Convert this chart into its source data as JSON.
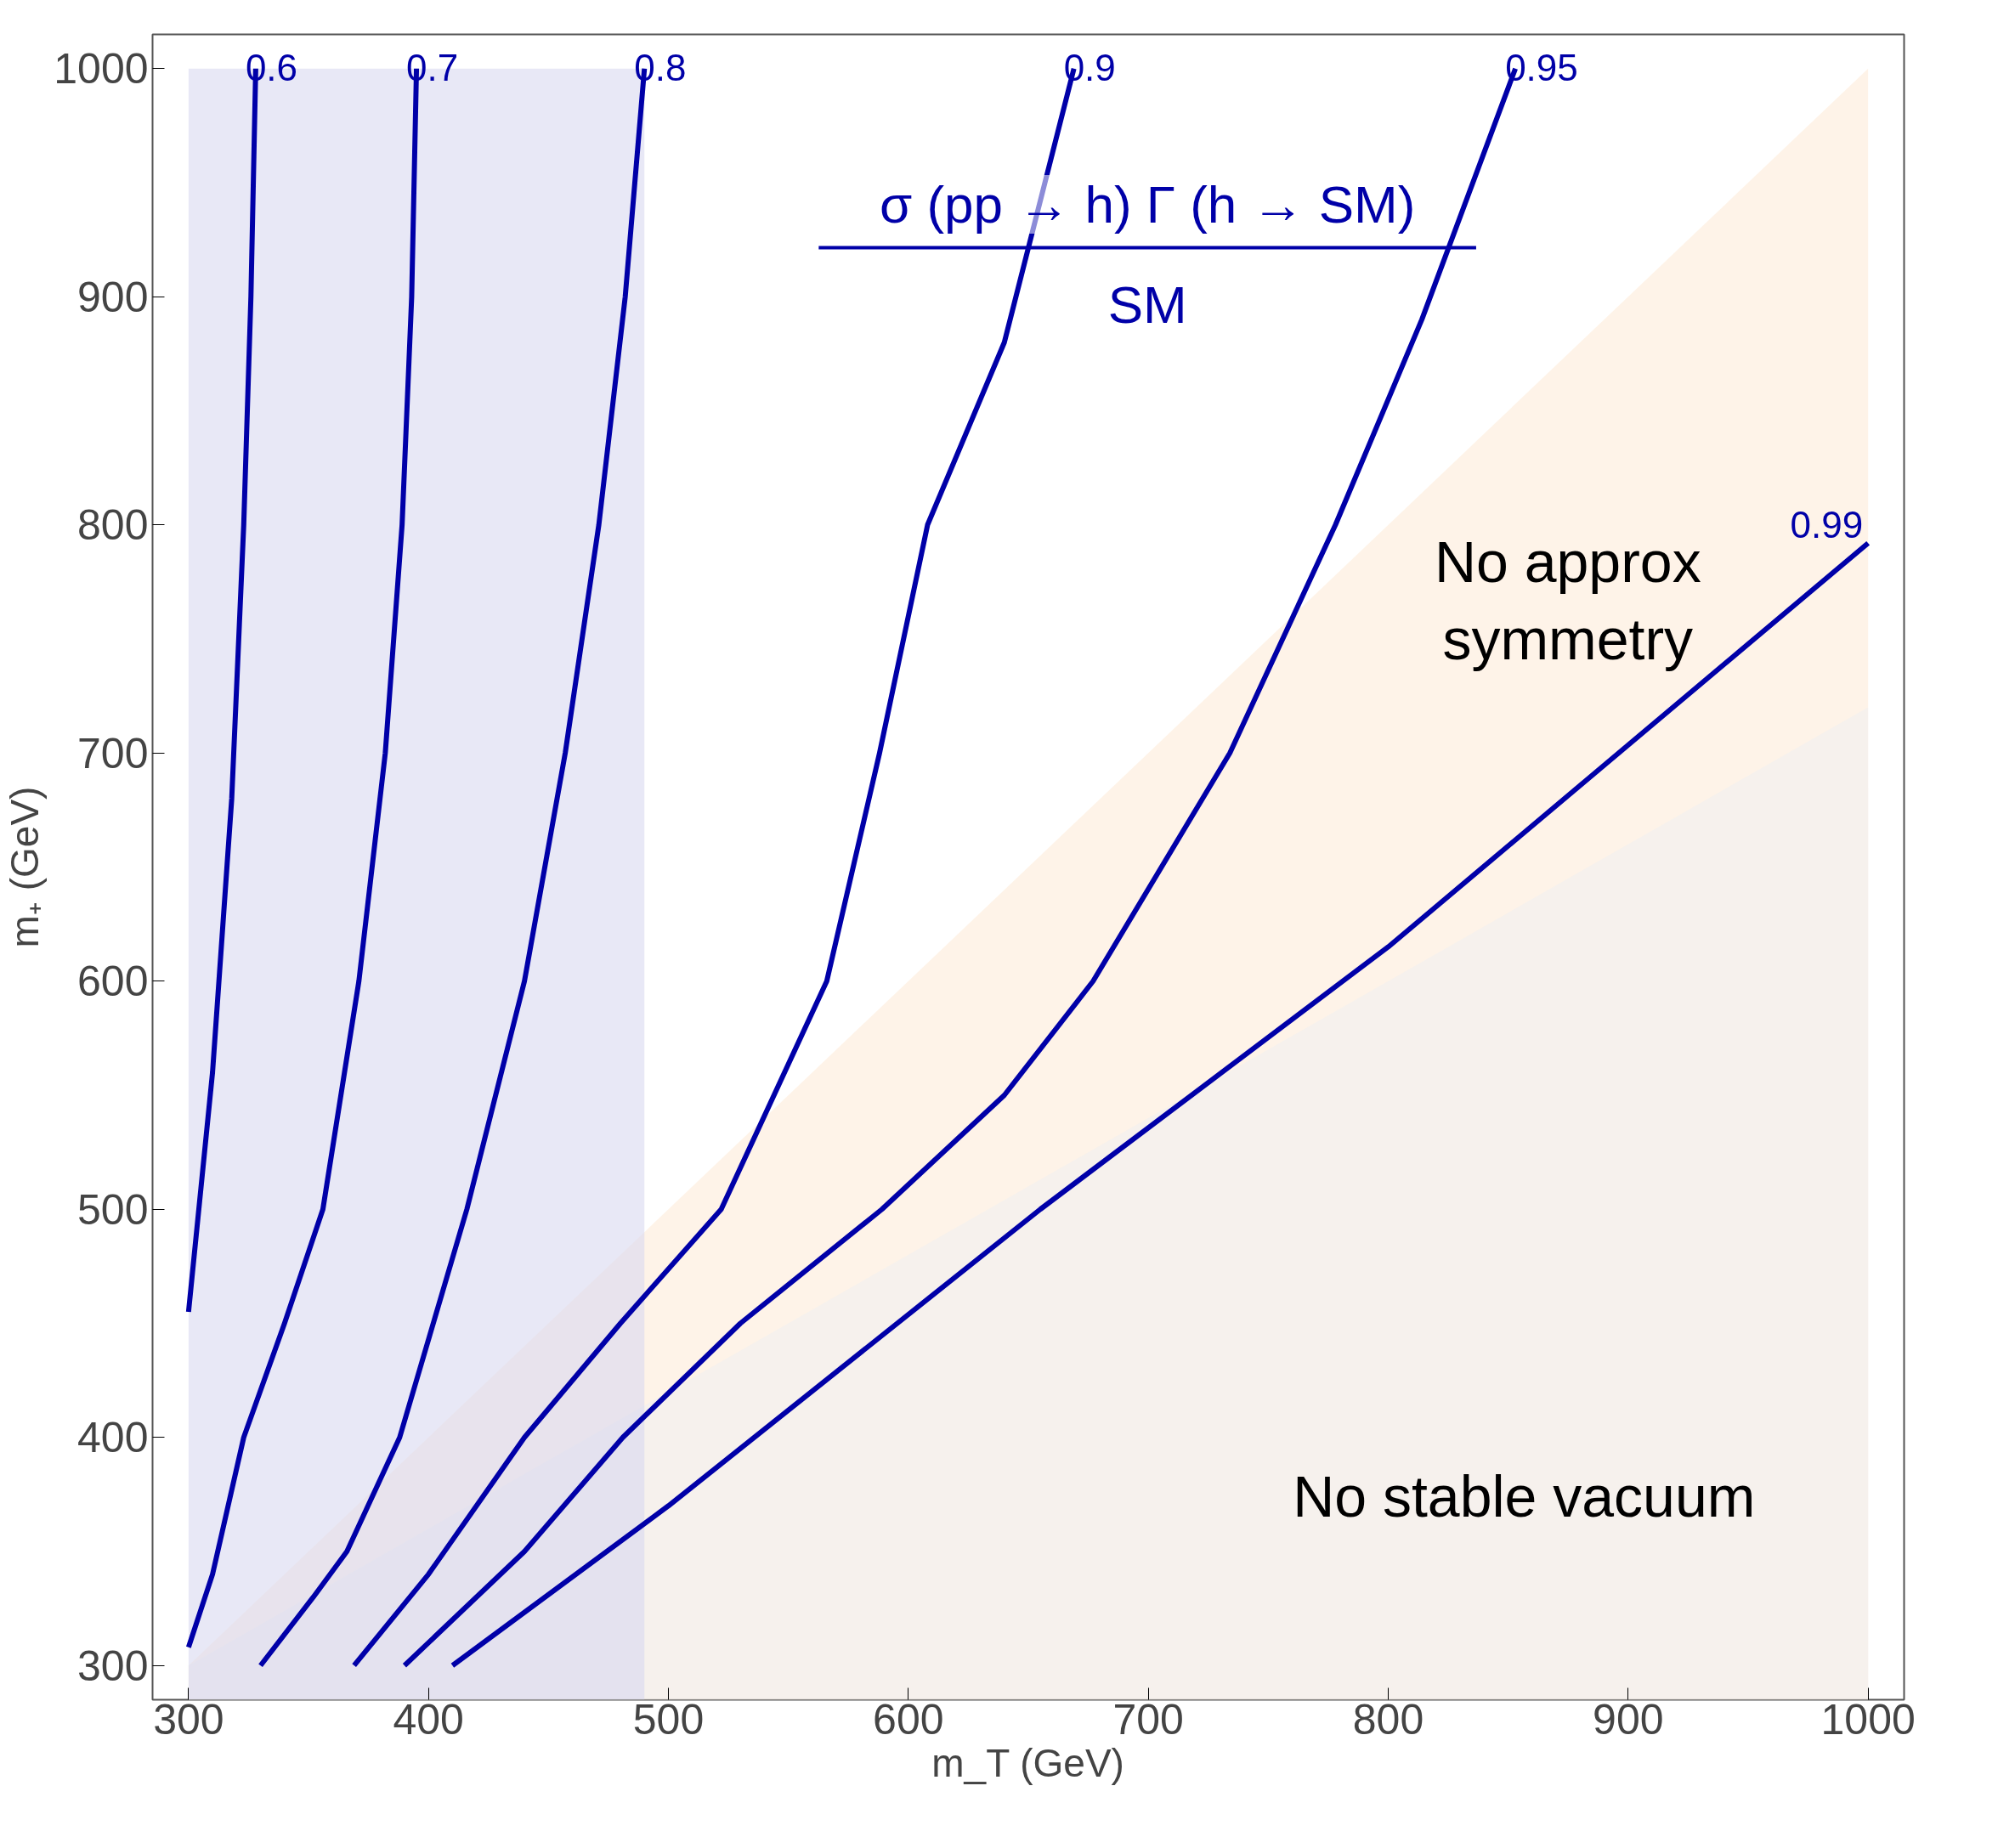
{
  "chart_data": {
    "type": "line",
    "xlabel": "m_T (GeV)",
    "ylabel": "m₊ (GeV)",
    "xlim": [
      285,
      1015
    ],
    "ylim": [
      285,
      1015
    ],
    "xticks": [
      300,
      400,
      500,
      600,
      700,
      800,
      900,
      1000
    ],
    "yticks": [
      300,
      400,
      500,
      600,
      700,
      800,
      900,
      1000
    ],
    "series": [
      {
        "type": "area",
        "color": "#fdebd9",
        "x": [
          300,
          1000
        ],
        "values": [
          300,
          1000
        ]
      },
      {
        "type": "area",
        "color": "#f0f0f0",
        "x": [
          300,
          1000
        ],
        "values": [
          300,
          720
        ]
      },
      {
        "type": "area",
        "color": "#d8d8f0",
        "x": [
          300,
          490
        ],
        "values": [
          1000,
          1000
        ]
      },
      {
        "name": "0.6",
        "color": "#0000a8",
        "x": [
          300,
          310,
          318,
          323,
          326,
          328
        ],
        "values": [
          455,
          560,
          680,
          800,
          900,
          1000
        ]
      },
      {
        "name": "0.7",
        "color": "#0000a8",
        "x": [
          300,
          310,
          323,
          340,
          356,
          371,
          382,
          389,
          393,
          395
        ],
        "values": [
          308,
          340,
          400,
          450,
          500,
          600,
          700,
          800,
          900,
          1000
        ]
      },
      {
        "name": "0.8",
        "color": "#0000a8",
        "x": [
          330,
          352,
          366,
          388,
          416,
          440,
          457,
          471,
          482,
          490
        ],
        "values": [
          300,
          330,
          350,
          400,
          500,
          600,
          700,
          800,
          900,
          1000
        ]
      },
      {
        "name": "0.9",
        "color": "#0000a8",
        "x": [
          369,
          400,
          440,
          480,
          522,
          566,
          588,
          608,
          640,
          669
        ],
        "values": [
          300,
          340,
          400,
          450,
          500,
          600,
          700,
          800,
          880,
          1000
        ]
      },
      {
        "name": "0.95",
        "color": "#0000a8",
        "x": [
          390,
          440,
          481,
          530,
          589,
          640,
          677,
          734,
          778,
          814,
          853
        ],
        "values": [
          300,
          350,
          400,
          450,
          500,
          550,
          600,
          700,
          800,
          890,
          1000
        ]
      },
      {
        "name": "0.99",
        "color": "#0000a8",
        "x": [
          410,
          500,
          655,
          800,
          1000
        ],
        "values": [
          300,
          370,
          500,
          615,
          792
        ]
      }
    ],
    "annotations": [
      "σ (pp → h) Γ (h → SM)",
      "SM",
      "No approx symmetry",
      "No stable vacuum"
    ]
  }
}
